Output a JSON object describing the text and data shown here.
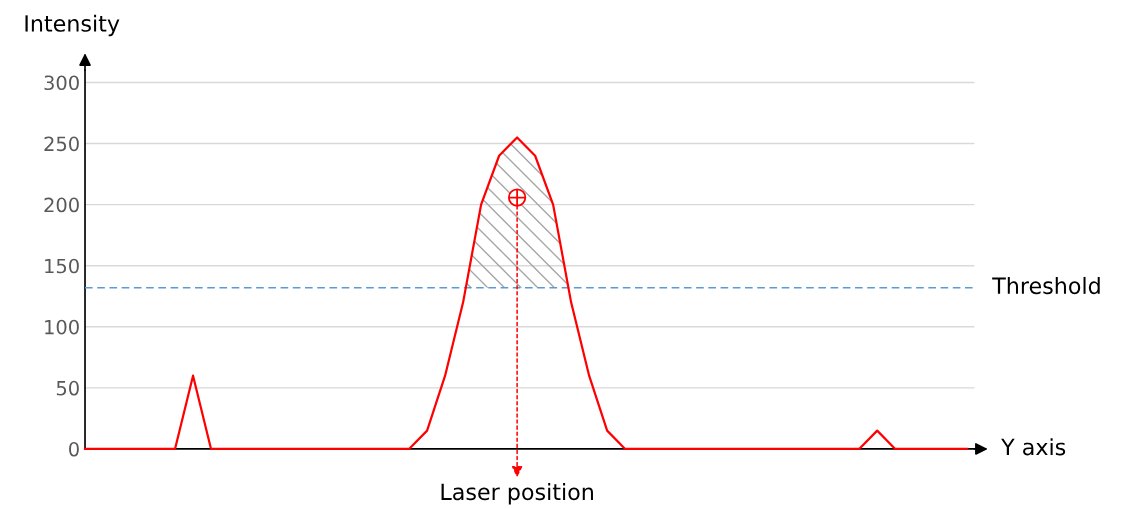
{
  "chart_data": {
    "type": "line",
    "xlabel": "Y axis",
    "ylabel": "Intensity",
    "categories": [
      null,
      null,
      null,
      null,
      null,
      null,
      null,
      null,
      null,
      null,
      null,
      null,
      null,
      null,
      null,
      null,
      null,
      null,
      null,
      null,
      null,
      null,
      null,
      null,
      null,
      null,
      null,
      null,
      null,
      null,
      null,
      null,
      null,
      null,
      null,
      null,
      null,
      null,
      null,
      null,
      null,
      null,
      null,
      null,
      null,
      null,
      null,
      null,
      null,
      null
    ],
    "series": [
      {
        "color": "#ff0000",
        "values": [
          0,
          0,
          0,
          0,
          0,
          0,
          60,
          0,
          0,
          0,
          0,
          0,
          0,
          0,
          0,
          0,
          0,
          0,
          0,
          15,
          60,
          120,
          200,
          240,
          255,
          240,
          200,
          120,
          60,
          15,
          0,
          0,
          0,
          0,
          0,
          0,
          0,
          0,
          0,
          0,
          0,
          0,
          0,
          0,
          15,
          0,
          0,
          0,
          0,
          0
        ]
      }
    ],
    "ylim": [
      0,
      310
    ],
    "yticks": [
      0,
      50,
      100,
      150,
      200,
      250,
      300
    ],
    "tick_labels": "y",
    "grid": "y",
    "ref_lines": [
      {
        "axis": "y",
        "value": 132,
        "label": "Threshold",
        "color": "#5b9bd5",
        "line_style": "dashed"
      }
    ],
    "annotations": [
      "Laser position"
    ]
  }
}
